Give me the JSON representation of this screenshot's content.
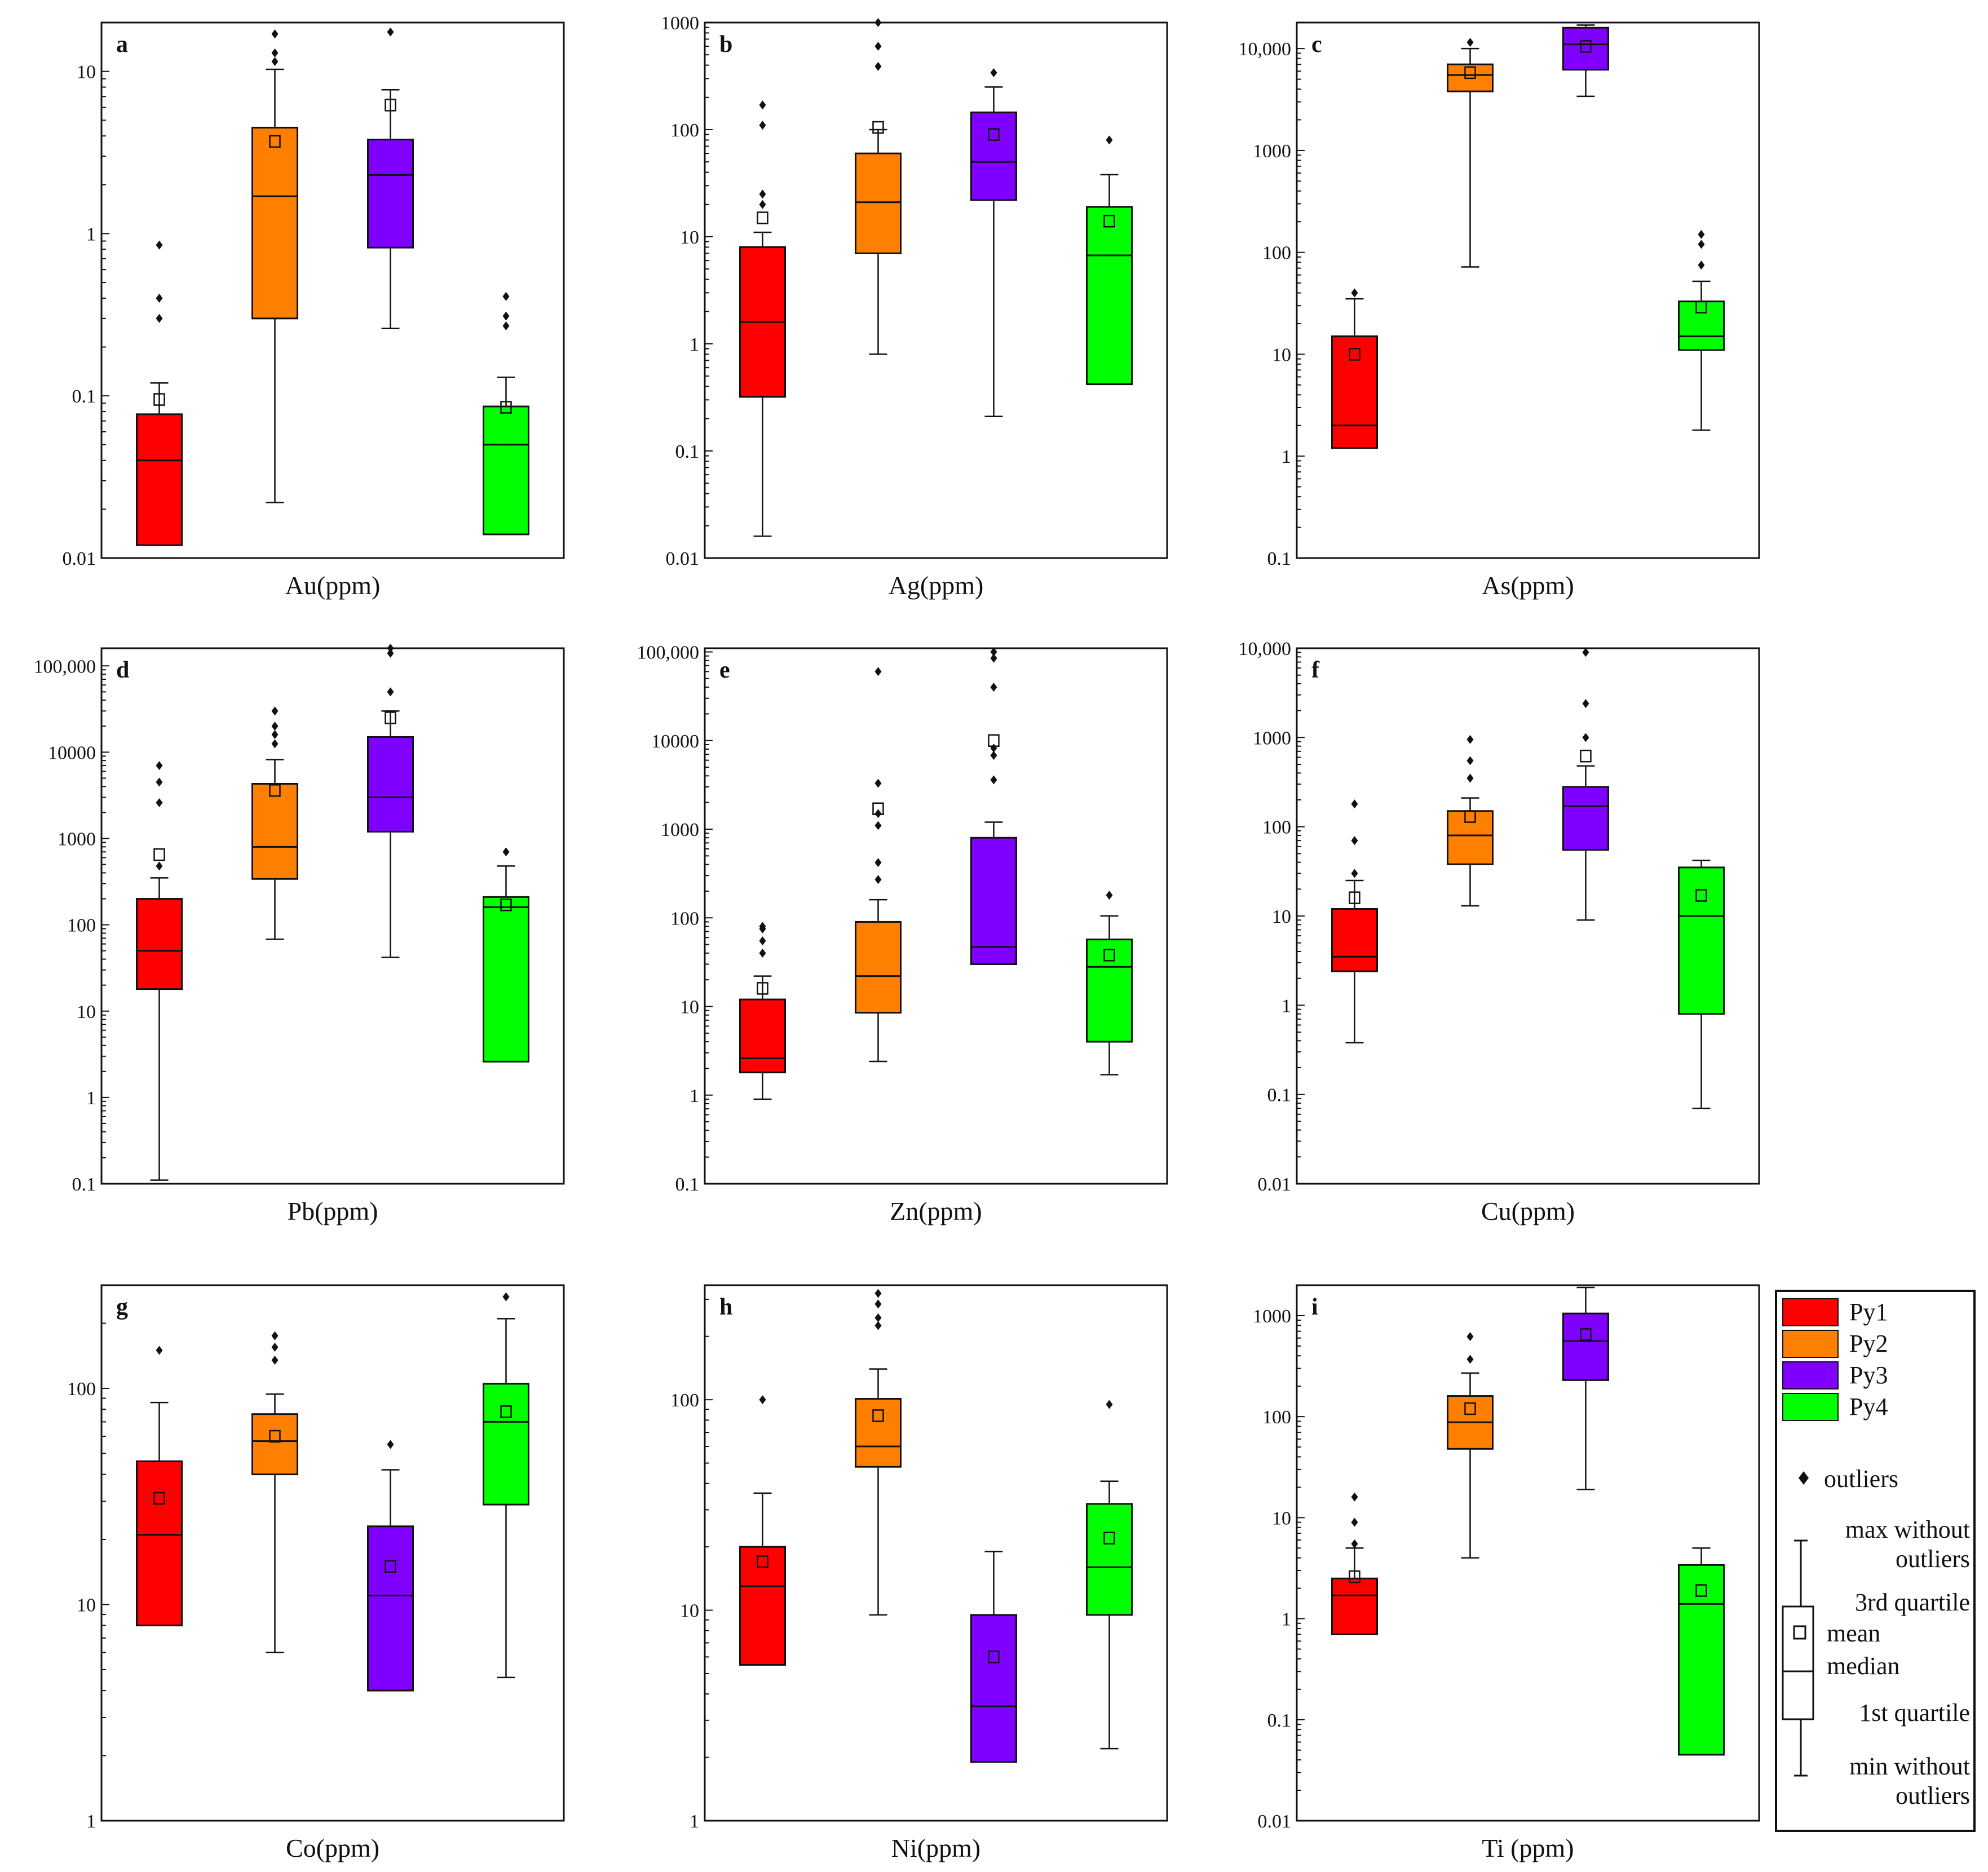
{
  "legend": {
    "items": [
      {
        "label": "Py1",
        "color": "#ff0000"
      },
      {
        "label": "Py2",
        "color": "#ff8000"
      },
      {
        "label": "Py3",
        "color": "#8000ff"
      },
      {
        "label": "Py4",
        "color": "#00ff00"
      }
    ],
    "key": {
      "outliers": "outliers",
      "max_line1": "max without",
      "max_line2": "outliers",
      "q3": "3rd quartile",
      "mean": "mean",
      "median": "median",
      "q1": "1st quartile",
      "min_line1": "min without",
      "min_line2": "outliers"
    }
  },
  "chart_data": [
    {
      "type": "box",
      "letter": "a",
      "xlabel": "Au(ppm)",
      "yscale": "log",
      "ylim": [
        0.01,
        20
      ],
      "ticks": [
        {
          "v": 0.01,
          "label": "0.01"
        },
        {
          "v": 0.1,
          "label": "0.1"
        },
        {
          "v": 1,
          "label": "1"
        },
        {
          "v": 10,
          "label": "10"
        }
      ],
      "groups": [
        {
          "name": "Py1",
          "min": 0.012,
          "q1": 0.012,
          "median": 0.04,
          "q3": 0.077,
          "max": 0.12,
          "mean": 0.095,
          "outliers": [
            0.3,
            0.4,
            0.85
          ]
        },
        {
          "name": "Py2",
          "min": 0.022,
          "q1": 0.3,
          "median": 1.7,
          "q3": 4.5,
          "max": 10.3,
          "mean": 3.7,
          "outliers": [
            11.5,
            13,
            17
          ]
        },
        {
          "name": "Py3",
          "min": 0.26,
          "q1": 0.82,
          "median": 2.3,
          "q3": 3.8,
          "max": 7.7,
          "mean": 6.2,
          "outliers": [
            17.5
          ]
        },
        {
          "name": "Py4",
          "min": 0.014,
          "q1": 0.014,
          "median": 0.05,
          "q3": 0.086,
          "max": 0.13,
          "mean": 0.085,
          "outliers": [
            0.27,
            0.31,
            0.41
          ]
        }
      ]
    },
    {
      "type": "box",
      "letter": "b",
      "xlabel": "Ag(ppm)",
      "yscale": "log",
      "ylim": [
        0.01,
        1000
      ],
      "ticks": [
        {
          "v": 0.01,
          "label": "0.01"
        },
        {
          "v": 0.1,
          "label": "0.1"
        },
        {
          "v": 1,
          "label": "1"
        },
        {
          "v": 10,
          "label": "10"
        },
        {
          "v": 100,
          "label": "100"
        },
        {
          "v": 1000,
          "label": "1000"
        }
      ],
      "groups": [
        {
          "name": "Py1",
          "min": 0.016,
          "q1": 0.32,
          "median": 1.6,
          "q3": 8,
          "max": 11,
          "mean": 15,
          "outliers": [
            20,
            25,
            110,
            170
          ]
        },
        {
          "name": "Py2",
          "min": 0.8,
          "q1": 7,
          "median": 21,
          "q3": 60,
          "max": 100,
          "mean": 105,
          "outliers": [
            390,
            600,
            1000
          ]
        },
        {
          "name": "Py3",
          "min": 0.21,
          "q1": 22,
          "median": 50,
          "q3": 145,
          "max": 250,
          "mean": 90,
          "outliers": [
            340
          ]
        },
        {
          "name": "Py4",
          "min": 0.42,
          "q1": 0.42,
          "median": 6.7,
          "q3": 19,
          "max": 38,
          "mean": 14,
          "outliers": [
            80
          ]
        }
      ]
    },
    {
      "type": "box",
      "letter": "c",
      "xlabel": "As(ppm)",
      "yscale": "log",
      "ylim": [
        0.1,
        18000
      ],
      "ticks": [
        {
          "v": 0.1,
          "label": "0.1"
        },
        {
          "v": 1,
          "label": "1"
        },
        {
          "v": 10,
          "label": "10"
        },
        {
          "v": 100,
          "label": "100"
        },
        {
          "v": 1000,
          "label": "1000"
        },
        {
          "v": 10000,
          "label": "10,000"
        }
      ],
      "groups": [
        {
          "name": "Py1",
          "min": 1.2,
          "q1": 1.2,
          "median": 2,
          "q3": 15,
          "max": 35,
          "mean": 10,
          "outliers": [
            40
          ]
        },
        {
          "name": "Py2",
          "min": 72,
          "q1": 3800,
          "median": 5500,
          "q3": 7000,
          "max": 10000,
          "mean": 5800,
          "outliers": [
            11500
          ]
        },
        {
          "name": "Py3",
          "min": 3400,
          "q1": 6200,
          "median": 11000,
          "q3": 16000,
          "max": 17000,
          "mean": 10500,
          "outliers": []
        },
        {
          "name": "Py4",
          "min": 1.8,
          "q1": 11,
          "median": 15,
          "q3": 33,
          "max": 52,
          "mean": 29,
          "outliers": [
            75,
            120,
            150
          ]
        }
      ]
    },
    {
      "type": "box",
      "letter": "d",
      "xlabel": "Pb(ppm)",
      "yscale": "log",
      "ylim": [
        0.1,
        160000
      ],
      "ticks": [
        {
          "v": 0.1,
          "label": "0.1"
        },
        {
          "v": 1,
          "label": "1"
        },
        {
          "v": 10,
          "label": "10"
        },
        {
          "v": 100,
          "label": "100"
        },
        {
          "v": 1000,
          "label": "1000"
        },
        {
          "v": 10000,
          "label": "10000"
        },
        {
          "v": 100000,
          "label": "100,000"
        }
      ],
      "groups": [
        {
          "name": "Py1",
          "min": 0.11,
          "q1": 18,
          "median": 50,
          "q3": 200,
          "max": 350,
          "mean": 650,
          "outliers": [
            480,
            2600,
            4500,
            7000
          ]
        },
        {
          "name": "Py2",
          "min": 68,
          "q1": 340,
          "median": 800,
          "q3": 4300,
          "max": 8200,
          "mean": 3600,
          "outliers": [
            12500,
            16000,
            20000,
            30000
          ]
        },
        {
          "name": "Py3",
          "min": 42,
          "q1": 1200,
          "median": 3000,
          "q3": 15000,
          "max": 30000,
          "mean": 25000,
          "outliers": [
            50000,
            140000,
            160000
          ]
        },
        {
          "name": "Py4",
          "min": 2.6,
          "q1": 2.6,
          "median": 160,
          "q3": 210,
          "max": 480,
          "mean": 170,
          "outliers": [
            700
          ]
        }
      ]
    },
    {
      "type": "box",
      "letter": "e",
      "xlabel": "Zn(ppm)",
      "yscale": "log",
      "ylim": [
        0.1,
        110000
      ],
      "ticks": [
        {
          "v": 0.1,
          "label": "0.1"
        },
        {
          "v": 1,
          "label": "1"
        },
        {
          "v": 10,
          "label": "10"
        },
        {
          "v": 100,
          "label": "100"
        },
        {
          "v": 1000,
          "label": "1000"
        },
        {
          "v": 10000,
          "label": "10000"
        },
        {
          "v": 100000,
          "label": "100,000"
        }
      ],
      "groups": [
        {
          "name": "Py1",
          "min": 0.9,
          "q1": 1.8,
          "median": 2.6,
          "q3": 12,
          "max": 22,
          "mean": 16,
          "outliers": [
            40,
            55,
            75,
            80
          ]
        },
        {
          "name": "Py2",
          "min": 2.4,
          "q1": 8.5,
          "median": 22,
          "q3": 90,
          "max": 160,
          "mean": 1700,
          "outliers": [
            270,
            420,
            1100,
            1500,
            3300,
            60000
          ]
        },
        {
          "name": "Py3",
          "min": 30,
          "q1": 30,
          "median": 47,
          "q3": 800,
          "max": 1200,
          "mean": 10000,
          "outliers": [
            3600,
            6800,
            8200,
            40000,
            85000,
            100000
          ]
        },
        {
          "name": "Py4",
          "min": 1.7,
          "q1": 4,
          "median": 28,
          "q3": 57,
          "max": 105,
          "mean": 38,
          "outliers": [
            180
          ]
        }
      ]
    },
    {
      "type": "box",
      "letter": "f",
      "xlabel": "Cu(ppm)",
      "yscale": "log",
      "ylim": [
        0.01,
        10000
      ],
      "ticks": [
        {
          "v": 0.01,
          "label": "0.01"
        },
        {
          "v": 0.1,
          "label": "0.1"
        },
        {
          "v": 1,
          "label": "1"
        },
        {
          "v": 10,
          "label": "10"
        },
        {
          "v": 100,
          "label": "100"
        },
        {
          "v": 1000,
          "label": "1000"
        },
        {
          "v": 10000,
          "label": "10,000"
        }
      ],
      "groups": [
        {
          "name": "Py1",
          "min": 0.38,
          "q1": 2.4,
          "median": 3.5,
          "q3": 12,
          "max": 25,
          "mean": 16,
          "outliers": [
            30,
            70,
            180
          ]
        },
        {
          "name": "Py2",
          "min": 13,
          "q1": 38,
          "median": 80,
          "q3": 150,
          "max": 210,
          "mean": 130,
          "outliers": [
            350,
            550,
            950
          ]
        },
        {
          "name": "Py3",
          "min": 9,
          "q1": 55,
          "median": 170,
          "q3": 280,
          "max": 480,
          "mean": 620,
          "outliers": [
            1000,
            2400,
            9000
          ]
        },
        {
          "name": "Py4",
          "min": 0.07,
          "q1": 0.8,
          "median": 10,
          "q3": 35,
          "max": 42,
          "mean": 17,
          "outliers": []
        }
      ]
    },
    {
      "type": "box",
      "letter": "g",
      "xlabel": "Co(ppm)",
      "yscale": "log",
      "ylim": [
        1,
        300
      ],
      "ticks": [
        {
          "v": 1,
          "label": "1"
        },
        {
          "v": 10,
          "label": "10"
        },
        {
          "v": 100,
          "label": "100"
        }
      ],
      "groups": [
        {
          "name": "Py1",
          "min": 8,
          "q1": 8,
          "median": 21,
          "q3": 46,
          "max": 86,
          "mean": 31,
          "outliers": [
            150
          ]
        },
        {
          "name": "Py2",
          "min": 6,
          "q1": 40,
          "median": 57,
          "q3": 76,
          "max": 94,
          "mean": 60,
          "outliers": [
            135,
            155,
            175
          ]
        },
        {
          "name": "Py3",
          "min": 4,
          "q1": 4,
          "median": 11,
          "q3": 23,
          "max": 42,
          "mean": 15,
          "outliers": [
            55
          ]
        },
        {
          "name": "Py4",
          "min": 4.6,
          "q1": 29,
          "median": 70,
          "q3": 105,
          "max": 210,
          "mean": 78,
          "outliers": [
            265
          ]
        }
      ]
    },
    {
      "type": "box",
      "letter": "h",
      "xlabel": "Ni(ppm)",
      "yscale": "log",
      "ylim": [
        1,
        350
      ],
      "ticks": [
        {
          "v": 1,
          "label": "1"
        },
        {
          "v": 10,
          "label": "10"
        },
        {
          "v": 100,
          "label": "100"
        }
      ],
      "groups": [
        {
          "name": "Py1",
          "min": 5.5,
          "q1": 5.5,
          "median": 13,
          "q3": 20,
          "max": 36,
          "mean": 17,
          "outliers": [
            100
          ]
        },
        {
          "name": "Py2",
          "min": 9.5,
          "q1": 48,
          "median": 60,
          "q3": 101,
          "max": 140,
          "mean": 84,
          "outliers": [
            225,
            245,
            285,
            320
          ]
        },
        {
          "name": "Py3",
          "min": 1.9,
          "q1": 1.9,
          "median": 3.5,
          "q3": 9.5,
          "max": 19,
          "mean": 6,
          "outliers": []
        },
        {
          "name": "Py4",
          "min": 2.2,
          "q1": 9.5,
          "median": 16,
          "q3": 32,
          "max": 41,
          "mean": 22,
          "outliers": [
            95
          ]
        }
      ]
    },
    {
      "type": "box",
      "letter": "i",
      "xlabel": "Ti (ppm)",
      "yscale": "log",
      "ylim": [
        0.01,
        2000
      ],
      "ticks": [
        {
          "v": 0.01,
          "label": "0.01"
        },
        {
          "v": 0.1,
          "label": "0.1"
        },
        {
          "v": 1,
          "label": "1"
        },
        {
          "v": 10,
          "label": "10"
        },
        {
          "v": 100,
          "label": "100"
        },
        {
          "v": 1000,
          "label": "1000"
        }
      ],
      "groups": [
        {
          "name": "Py1",
          "min": 0.7,
          "q1": 0.7,
          "median": 1.7,
          "q3": 2.5,
          "max": 5,
          "mean": 2.6,
          "outliers": [
            5.5,
            9,
            16
          ]
        },
        {
          "name": "Py2",
          "min": 4,
          "q1": 48,
          "median": 88,
          "q3": 160,
          "max": 270,
          "mean": 120,
          "outliers": [
            370,
            620
          ]
        },
        {
          "name": "Py3",
          "min": 19,
          "q1": 230,
          "median": 560,
          "q3": 1050,
          "max": 1900,
          "mean": 650,
          "outliers": []
        },
        {
          "name": "Py4",
          "min": 0.045,
          "q1": 0.045,
          "median": 1.4,
          "q3": 3.4,
          "max": 5,
          "mean": 1.9,
          "outliers": []
        }
      ]
    }
  ]
}
